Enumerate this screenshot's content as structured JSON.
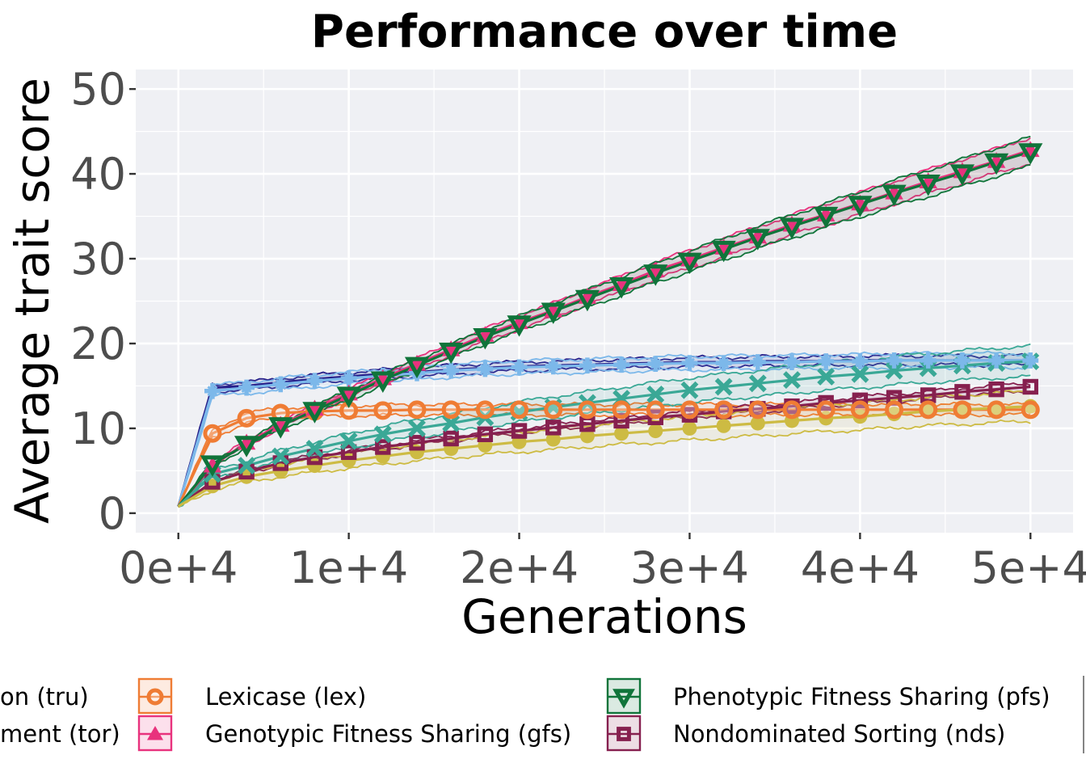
{
  "chart_data": {
    "type": "line",
    "title": "Performance over time",
    "xlabel": "Generations",
    "ylabel": "Average trait score",
    "xlim": [
      -2500,
      52500
    ],
    "ylim": [
      -2.3,
      52.3
    ],
    "x_ticks": [
      0,
      10000,
      20000,
      30000,
      40000,
      50000
    ],
    "x_tick_labels": [
      "0e+4",
      "1e+4",
      "2e+4",
      "3e+4",
      "4e+4",
      "5e+4"
    ],
    "y_ticks": [
      0,
      10,
      20,
      30,
      40,
      50
    ],
    "y_tick_labels": [
      "0",
      "10",
      "20",
      "30",
      "40",
      "50"
    ],
    "grid": true,
    "legend_position": "bottom",
    "x": [
      0,
      2000,
      4000,
      6000,
      8000,
      10000,
      12000,
      14000,
      16000,
      18000,
      20000,
      22000,
      24000,
      26000,
      28000,
      30000,
      32000,
      34000,
      36000,
      38000,
      40000,
      42000,
      44000,
      46000,
      48000,
      50000
    ],
    "series": [
      {
        "name": "Truncation (tru)",
        "legend_label": "on (tru)",
        "color": "#27208a",
        "marker": "none",
        "values": [
          0.8,
          14.8,
          15.0,
          15.4,
          15.8,
          16.1,
          16.4,
          16.6,
          16.9,
          17.1,
          17.3,
          17.4,
          17.5,
          17.6,
          17.7,
          17.8,
          17.8,
          17.9,
          17.9,
          17.9,
          18.0,
          18.0,
          18.0,
          18.0,
          18.0,
          18.0
        ]
      },
      {
        "name": "Tournament (tor)",
        "legend_label": "ment (tor)",
        "color": "#7cb8ea",
        "marker": "plus",
        "values": [
          0.8,
          14.4,
          14.8,
          15.2,
          15.6,
          15.9,
          16.2,
          16.5,
          16.8,
          17.0,
          17.2,
          17.3,
          17.4,
          17.5,
          17.6,
          17.7,
          17.7,
          17.8,
          17.8,
          17.9,
          17.9,
          18.0,
          18.0,
          18.0,
          18.0,
          18.0
        ]
      },
      {
        "name": "Lexicase (lex)",
        "color": "#ef7c34",
        "marker": "circle-open",
        "values": [
          0.8,
          9.4,
          11.2,
          11.8,
          12.0,
          12.1,
          12.1,
          12.2,
          12.2,
          12.2,
          12.2,
          12.2,
          12.2,
          12.2,
          12.2,
          12.2,
          12.2,
          12.2,
          12.2,
          12.2,
          12.2,
          12.2,
          12.2,
          12.2,
          12.2,
          12.2
        ]
      },
      {
        "name": "Genotypic Fitness Sharing (gfs)",
        "color": "#e8327d",
        "marker": "triangle",
        "values": [
          0.8,
          5.6,
          8.3,
          10.4,
          12.3,
          14.1,
          15.9,
          17.6,
          19.3,
          21.0,
          22.5,
          23.9,
          25.5,
          27.0,
          28.6,
          29.9,
          31.3,
          32.6,
          34.0,
          35.2,
          36.5,
          37.8,
          39.1,
          40.3,
          41.5,
          42.8
        ]
      },
      {
        "name": "Phenotypic Fitness Sharing (pfs)",
        "color": "#10743a",
        "marker": "triangle-down-open",
        "values": [
          0.8,
          5.8,
          8.1,
          10.3,
          12.1,
          13.9,
          15.7,
          17.4,
          19.1,
          20.8,
          22.3,
          23.8,
          25.3,
          26.8,
          28.3,
          29.7,
          31.1,
          32.5,
          33.8,
          35.1,
          36.4,
          37.7,
          38.9,
          40.1,
          41.4,
          42.6
        ]
      },
      {
        "name": "Nondominated Sorting (nds)",
        "color": "#86204f",
        "marker": "square-open",
        "values": [
          0.8,
          3.7,
          4.9,
          5.9,
          6.6,
          7.2,
          7.8,
          8.3,
          8.8,
          9.3,
          9.7,
          10.1,
          10.5,
          10.9,
          11.3,
          11.6,
          12.0,
          12.3,
          12.6,
          13.0,
          13.3,
          13.6,
          13.9,
          14.3,
          14.6,
          14.9
        ]
      },
      {
        "name": "",
        "color": "#3aa896",
        "marker": "x",
        "values": [
          0.8,
          4.6,
          5.6,
          6.7,
          7.6,
          8.5,
          9.3,
          10.0,
          10.6,
          11.3,
          11.9,
          12.5,
          13.0,
          13.5,
          14.0,
          14.5,
          14.9,
          15.3,
          15.7,
          16.1,
          16.4,
          16.8,
          17.1,
          17.4,
          17.7,
          17.9
        ]
      },
      {
        "name": "",
        "color": "#cdbb43",
        "marker": "circle",
        "values": [
          0.8,
          3.2,
          4.3,
          5.0,
          5.6,
          6.2,
          6.7,
          7.2,
          7.6,
          8.0,
          8.4,
          8.7,
          9.1,
          9.4,
          9.7,
          10.0,
          10.3,
          10.6,
          10.9,
          11.2,
          11.4,
          11.7,
          12.0,
          12.2,
          12.4,
          12.6
        ]
      }
    ],
    "legend": [
      {
        "label": "on (tru)",
        "color": "#27208a",
        "marker": "none"
      },
      {
        "label": "ment (tor)",
        "color": "#7cb8ea",
        "marker": "plus"
      },
      {
        "label": "Lexicase (lex)",
        "color": "#ef7c34",
        "marker": "circle-open"
      },
      {
        "label": "Genotypic Fitness Sharing (gfs)",
        "color": "#e8327d",
        "marker": "triangle"
      },
      {
        "label": "Phenotypic Fitness Sharing (pfs)",
        "color": "#10743a",
        "marker": "triangle-down-open"
      },
      {
        "label": "Nondominated Sorting (nds)",
        "color": "#86204f",
        "marker": "square-open"
      }
    ]
  }
}
